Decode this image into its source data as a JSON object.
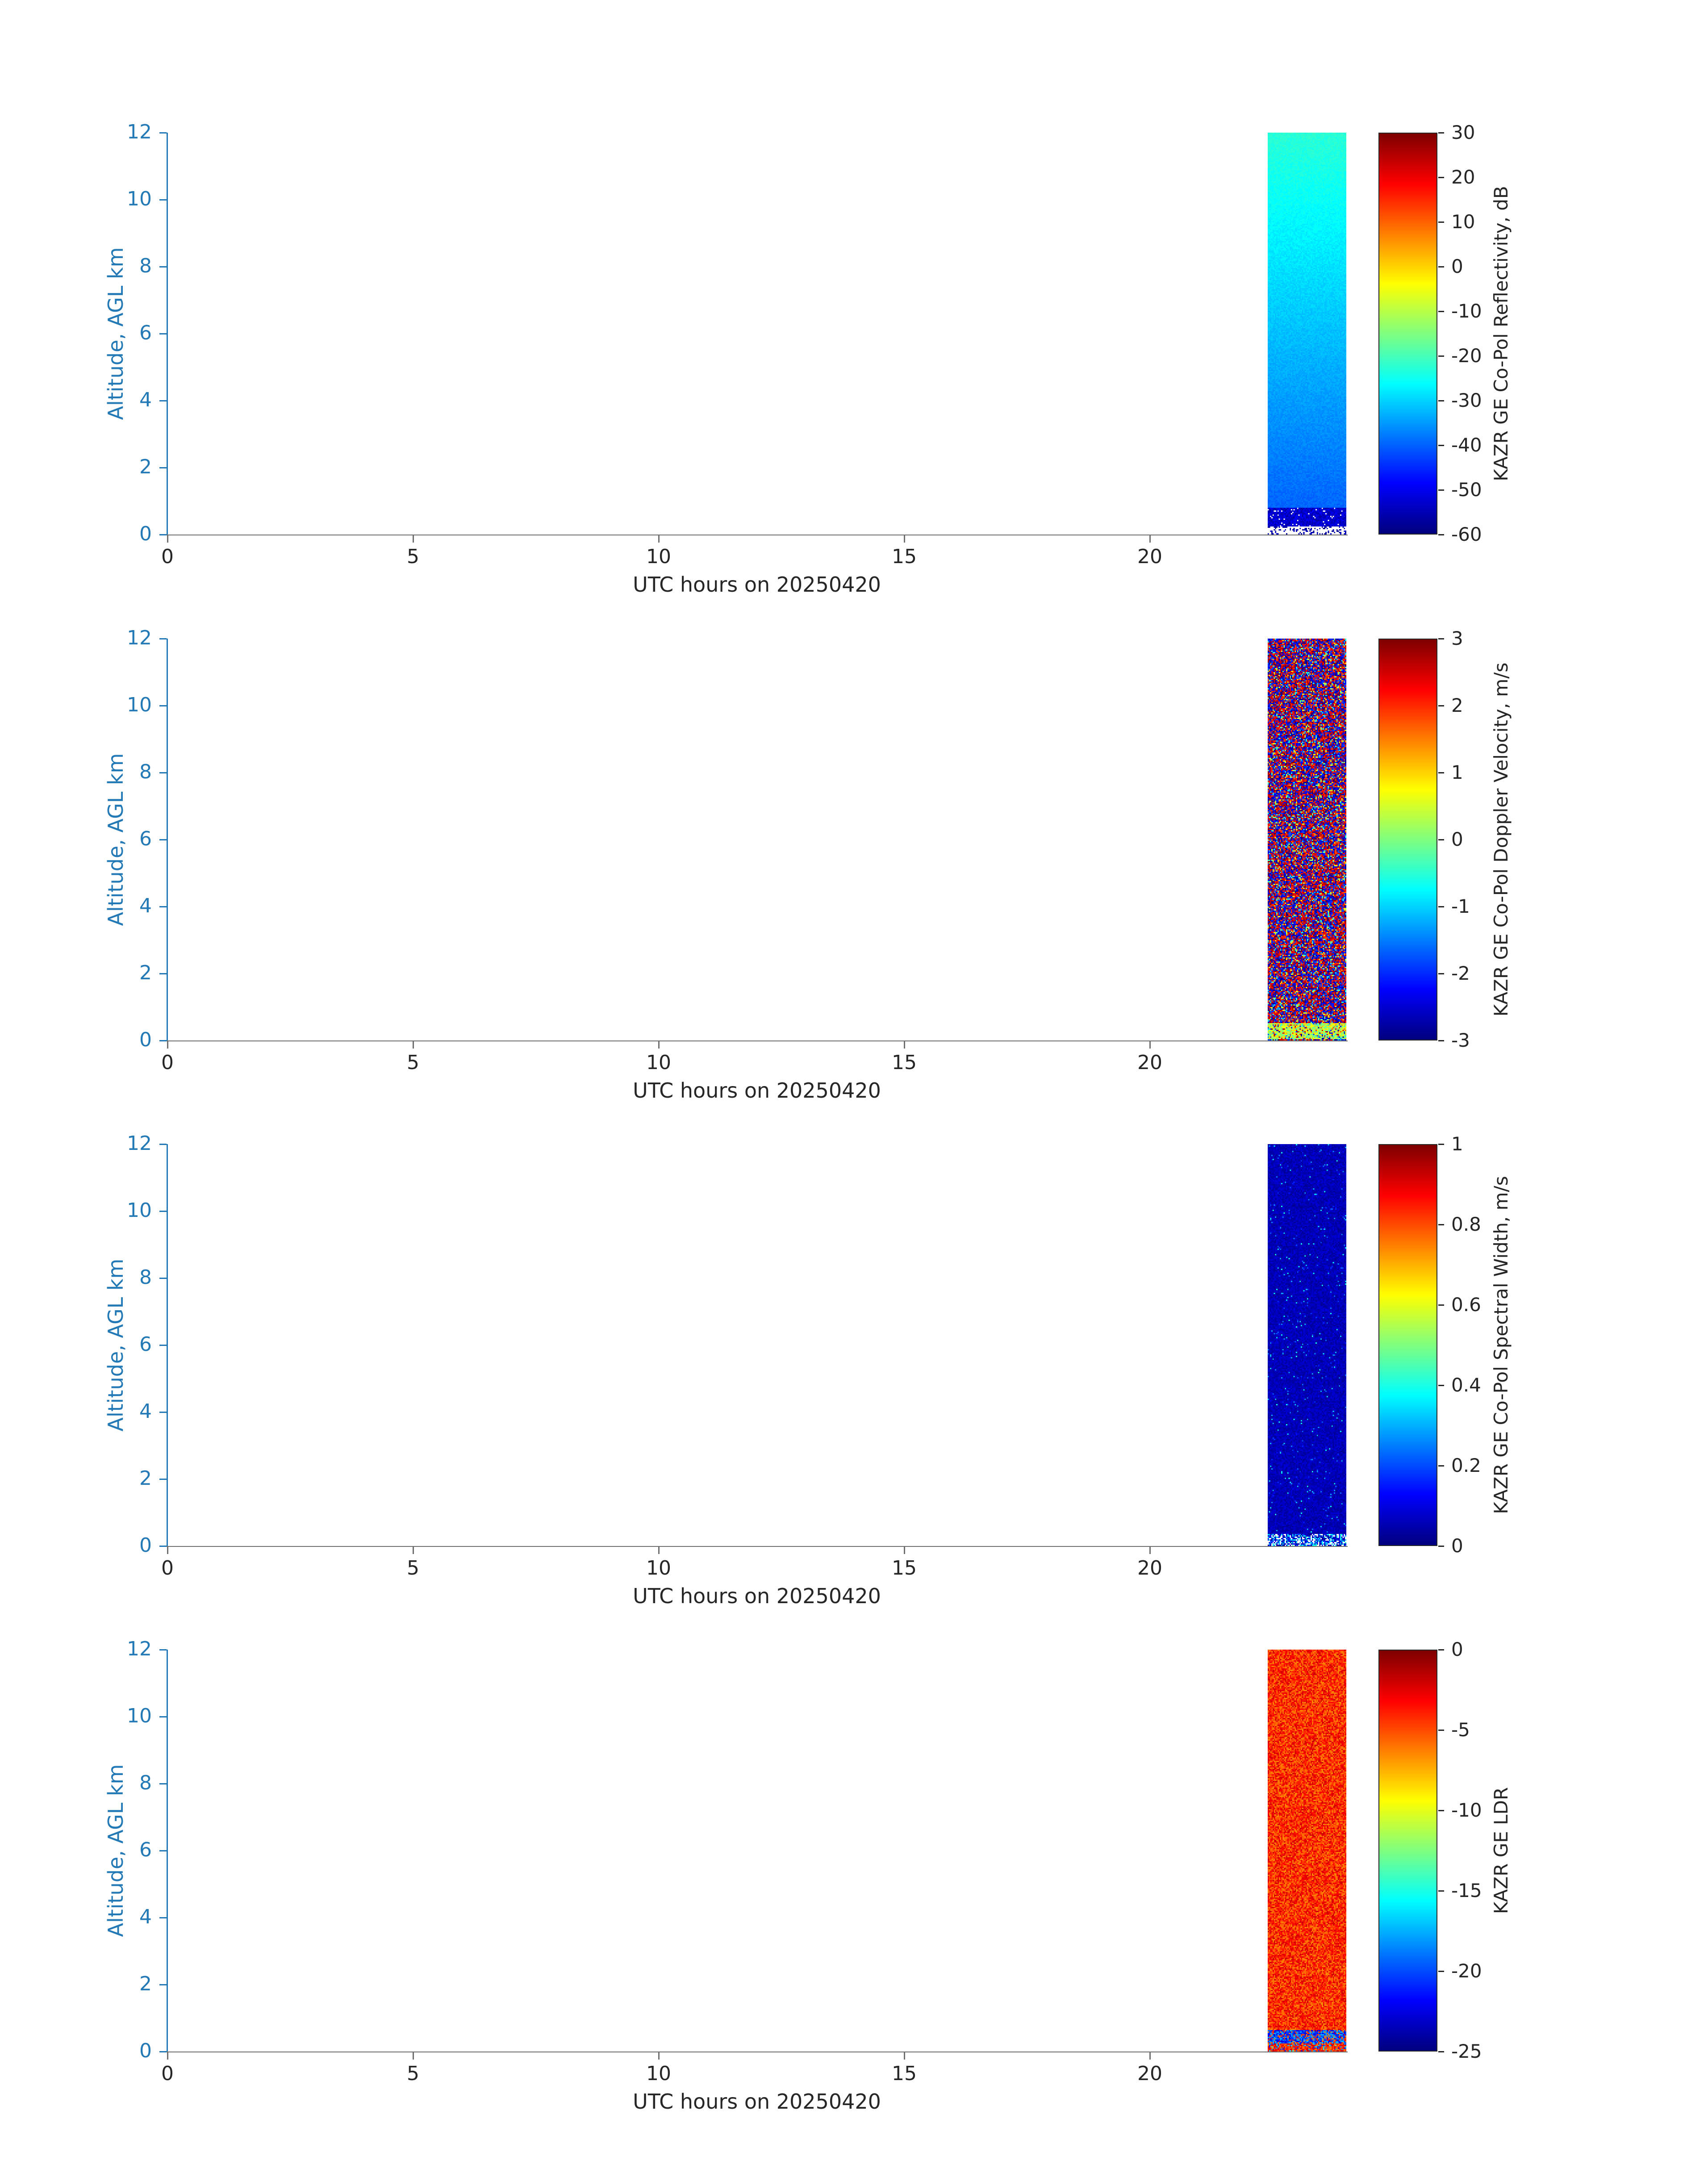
{
  "figure": {
    "background": "#ffffff",
    "date": "20250420",
    "instrument": "KAZR GE"
  },
  "styles": {
    "accent_blue": "#2279b5",
    "text_dark": "#262626",
    "spine_gray": "#6f6f6f",
    "colormap": "jet"
  },
  "chart_data": [
    {
      "type": "heatmap",
      "id": "copol_reflectivity",
      "xlabel": "UTC hours on 20250420",
      "ylabel": "Altitude, AGL km",
      "xlim": [
        0,
        24
      ],
      "ylim": [
        0,
        12
      ],
      "xticks": [
        "0",
        "5",
        "10",
        "15",
        "20"
      ],
      "xtick_values": [
        0,
        5,
        10,
        15,
        20
      ],
      "yticks": [
        "0",
        "2",
        "4",
        "6",
        "8",
        "10",
        "12"
      ],
      "ytick_values": [
        0,
        2,
        4,
        6,
        8,
        10,
        12
      ],
      "grid": false,
      "colorbar": {
        "label": "KAZR GE Co-Pol Reflectivity, dB",
        "min": -60,
        "max": 30,
        "ticks": [
          "30",
          "20",
          "10",
          "0",
          "-10",
          "-20",
          "-30",
          "-40",
          "-50",
          "-60"
        ],
        "tick_values": [
          30,
          20,
          10,
          0,
          -10,
          -20,
          -30,
          -40,
          -50,
          -60
        ],
        "colormap": "jet"
      },
      "data_region": {
        "utc_start_hours": 22.4,
        "utc_end_hours": 24.0,
        "altitude_min_km": 0,
        "altitude_max_km": 12
      },
      "field": {
        "description": "Noise-like reflectivity echo: about -22 dB (turquoise) at 12 km grading to about -40 dB (blue) near 1 km; dark-blue -50 to -58 dB band below 0.8 km; white no-data speckle below about 0.22 km",
        "top_value_db": -22.5,
        "lapse_db_per_km": 1.55,
        "surface_band_top_km": 0.8,
        "surface_band_db": -53,
        "clutter_gap_km": 0.22,
        "noise_db": 3
      }
    },
    {
      "type": "heatmap",
      "id": "copol_doppler_velocity",
      "xlabel": "UTC hours on 20250420",
      "ylabel": "Altitude, AGL km",
      "xlim": [
        0,
        24
      ],
      "ylim": [
        0,
        12
      ],
      "xticks": [
        "0",
        "5",
        "10",
        "15",
        "20"
      ],
      "xtick_values": [
        0,
        5,
        10,
        15,
        20
      ],
      "yticks": [
        "0",
        "2",
        "4",
        "6",
        "8",
        "10",
        "12"
      ],
      "ytick_values": [
        0,
        2,
        4,
        6,
        8,
        10,
        12
      ],
      "grid": false,
      "colorbar": {
        "label": "KAZR GE Co-Pol Doppler Velocity, m/s",
        "min": -3,
        "max": 3,
        "ticks": [
          "3",
          "2",
          "1",
          "0",
          "-1",
          "-2",
          "-3"
        ],
        "tick_values": [
          3,
          2,
          1,
          0,
          -1,
          -2,
          -3
        ],
        "colormap": "jet"
      },
      "data_region": {
        "utc_start_hours": 22.4,
        "utc_end_hours": 24.0,
        "altitude_min_km": 0,
        "altitude_max_km": 12
      },
      "field": {
        "description": "Uncorrelated speckle noise spanning the full -3 to +3 m/s range (dense red/blue speckle); coherent green-yellow band near 0 to +1 m/s below about 0.5 km",
        "noise_full_range": true,
        "surface_band_top_km": 0.5,
        "surface_band_range": [
          -0.3,
          1.1
        ]
      }
    },
    {
      "type": "heatmap",
      "id": "copol_spectral_width",
      "xlabel": "UTC hours on 20250420",
      "ylabel": "Altitude, AGL km",
      "xlim": [
        0,
        24
      ],
      "ylim": [
        0,
        12
      ],
      "xticks": [
        "0",
        "5",
        "10",
        "15",
        "20"
      ],
      "xtick_values": [
        0,
        5,
        10,
        15,
        20
      ],
      "yticks": [
        "0",
        "2",
        "4",
        "6",
        "8",
        "10",
        "12"
      ],
      "ytick_values": [
        0,
        2,
        4,
        6,
        8,
        10,
        12
      ],
      "grid": false,
      "colorbar": {
        "label": "KAZR GE Co-Pol Spectral Width, m/s",
        "min": 0,
        "max": 1,
        "ticks": [
          "1",
          "0.8",
          "0.6",
          "0.4",
          "0.2",
          "0"
        ],
        "tick_values": [
          1,
          0.8,
          0.6,
          0.4,
          0.2,
          0
        ],
        "colormap": "jet"
      },
      "data_region": {
        "utc_start_hours": 22.4,
        "utc_end_hours": 24.0,
        "altitude_min_km": 0,
        "altitude_max_km": 12
      },
      "field": {
        "description": "Mostly near-zero spectral width (dark blue, about 0.02-0.09 m/s) with sparse cyan specks; brighter cyan/white speckle band below about 0.35 km",
        "base_range": [
          0.02,
          0.09
        ],
        "speckle_range": [
          0.12,
          0.4
        ],
        "speckle_fraction": 0.025,
        "surface_band_top_km": 0.35
      }
    },
    {
      "type": "heatmap",
      "id": "ldr",
      "xlabel": "UTC hours on 20250420",
      "ylabel": "Altitude, AGL km",
      "xlim": [
        0,
        24
      ],
      "ylim": [
        0,
        12
      ],
      "xticks": [
        "0",
        "5",
        "10",
        "15",
        "20"
      ],
      "xtick_values": [
        0,
        5,
        10,
        15,
        20
      ],
      "yticks": [
        "0",
        "2",
        "4",
        "6",
        "8",
        "10",
        "12"
      ],
      "ytick_values": [
        0,
        2,
        4,
        6,
        8,
        10,
        12
      ],
      "grid": false,
      "colorbar": {
        "label": "KAZR GE LDR",
        "min": -25,
        "max": 0,
        "ticks": [
          "0",
          "-5",
          "-10",
          "-15",
          "-20",
          "-25"
        ],
        "tick_values": [
          0,
          -5,
          -10,
          -15,
          -20,
          -25
        ],
        "colormap": "jet"
      },
      "data_region": {
        "utc_start_hours": 22.4,
        "utc_end_hours": 24.0,
        "altitude_min_km": 0,
        "altitude_max_km": 12
      },
      "field": {
        "description": "Orange-red LDR noise around -6 to -2 throughout the column; blue band near -23 to -17 between roughly 0.25 and 0.6 km with orange speckle below",
        "bulk_range": [
          -6.6,
          -1.8
        ],
        "surface_band_km": [
          0.25,
          0.62
        ],
        "surface_band_range": [
          -23,
          -17
        ]
      }
    }
  ]
}
